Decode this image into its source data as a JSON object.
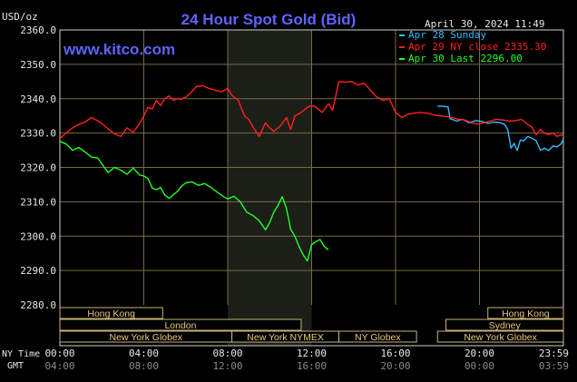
{
  "chart_data": {
    "type": "line",
    "title": "24 Hour Spot Gold (Bid)",
    "date_stamp": "April 30, 2024 11:49",
    "website": "www.kitco.com",
    "y_unit": "USD/oz",
    "ylim": [
      2280,
      2360
    ],
    "y_ticks": [
      "2360.0",
      "2350.0",
      "2340.0",
      "2330.0",
      "2320.0",
      "2310.0",
      "2300.0",
      "2290.0",
      "2280.0"
    ],
    "x_label_ny": "NY Time",
    "x_label_gmt": "GMT",
    "x_ticks_ny": [
      "00:00",
      "04:00",
      "08:00",
      "12:00",
      "16:00",
      "20:00",
      "23:59"
    ],
    "x_ticks_gmt": [
      "04:00",
      "08:00",
      "12:00",
      "16:00",
      "20:00",
      "00:00",
      "03:59"
    ],
    "xlim": [
      0,
      24
    ],
    "highlight_hours": [
      8,
      12
    ],
    "legend_position": "top-right",
    "series": [
      {
        "name": "Apr 28 Sunday",
        "color": "#33bbff",
        "x": [
          18.0,
          18.25,
          18.5,
          18.6,
          18.9,
          19.2,
          19.5,
          19.8,
          20.1,
          20.4,
          20.7,
          21.0,
          21.2,
          21.35,
          21.5,
          21.65,
          21.8,
          21.95,
          22.1,
          22.3,
          22.5,
          22.7,
          22.9,
          23.1,
          23.3,
          23.5,
          23.7,
          23.9,
          24.0
        ],
        "y": [
          2337.8,
          2337.8,
          2337.6,
          2334.2,
          2333.5,
          2334.0,
          2333.0,
          2333.6,
          2333.4,
          2332.8,
          2333.2,
          2333.0,
          2332.5,
          2331.0,
          2325.6,
          2327.0,
          2324.9,
          2328.0,
          2327.7,
          2329.0,
          2328.5,
          2327.8,
          2325.0,
          2325.6,
          2324.9,
          2326.2,
          2326.0,
          2326.9,
          2328.2
        ]
      },
      {
        "name": "Apr 29 NY close 2335.30",
        "color": "#ff2020",
        "x": [
          0.0,
          0.3,
          0.6,
          0.9,
          1.2,
          1.5,
          1.8,
          2.0,
          2.3,
          2.6,
          2.9,
          3.2,
          3.5,
          3.8,
          4.0,
          4.2,
          4.4,
          4.6,
          4.8,
          5.0,
          5.2,
          5.4,
          5.6,
          5.8,
          6.0,
          6.2,
          6.5,
          6.8,
          7.1,
          7.4,
          7.7,
          8.0,
          8.2,
          8.5,
          8.8,
          9.0,
          9.2,
          9.5,
          9.8,
          10.0,
          10.2,
          10.5,
          10.8,
          11.0,
          11.2,
          11.5,
          11.8,
          12.0,
          12.2,
          12.5,
          12.8,
          13.0,
          13.3,
          13.6,
          13.9,
          14.2,
          14.5,
          14.8,
          15.1,
          15.4,
          15.7,
          16.0,
          16.3,
          16.6,
          16.9,
          17.2,
          17.5,
          17.8,
          18.1,
          18.4,
          18.7,
          19.0,
          19.3,
          19.6,
          19.9,
          20.2,
          20.5,
          20.8,
          21.1,
          21.4,
          21.7,
          22.0,
          22.3,
          22.5,
          22.7,
          22.9,
          23.1,
          23.3,
          23.5,
          23.7,
          23.9,
          24.0
        ],
        "y": [
          2328.4,
          2330.0,
          2331.5,
          2332.5,
          2333.2,
          2334.5,
          2333.6,
          2332.8,
          2331.2,
          2329.8,
          2329.0,
          2331.5,
          2330.2,
          2332.8,
          2335.0,
          2337.5,
          2337.0,
          2339.5,
          2338.0,
          2340.0,
          2340.8,
          2339.5,
          2340.0,
          2339.8,
          2340.5,
          2341.5,
          2343.5,
          2343.8,
          2343.0,
          2342.5,
          2342.0,
          2343.0,
          2341.0,
          2339.5,
          2335.0,
          2334.0,
          2331.8,
          2329.0,
          2333.0,
          2331.5,
          2330.5,
          2332.0,
          2334.5,
          2331.0,
          2335.0,
          2336.0,
          2337.5,
          2338.0,
          2337.5,
          2336.0,
          2338.5,
          2336.6,
          2345.0,
          2344.8,
          2345.0,
          2344.0,
          2344.5,
          2342.5,
          2340.5,
          2339.5,
          2340.0,
          2336.0,
          2334.5,
          2335.5,
          2335.8,
          2336.0,
          2335.8,
          2335.3,
          2335.0,
          2334.8,
          2334.5,
          2334.0,
          2333.8,
          2333.0,
          2332.6,
          2333.0,
          2333.5,
          2334.0,
          2333.8,
          2333.5,
          2333.6,
          2334.0,
          2332.5,
          2331.8,
          2329.5,
          2331.0,
          2330.0,
          2329.5,
          2330.0,
          2329.0,
          2329.5,
          2329.2
        ]
      },
      {
        "name": "Apr 30 Last 2296.00",
        "color": "#22ff22",
        "x": [
          0.0,
          0.3,
          0.6,
          0.9,
          1.2,
          1.5,
          1.8,
          2.0,
          2.3,
          2.6,
          2.9,
          3.2,
          3.5,
          3.8,
          4.0,
          4.2,
          4.4,
          4.6,
          4.8,
          5.0,
          5.2,
          5.4,
          5.6,
          5.8,
          6.0,
          6.3,
          6.6,
          6.9,
          7.2,
          7.5,
          7.8,
          8.0,
          8.3,
          8.6,
          8.9,
          9.2,
          9.5,
          9.8,
          10.0,
          10.2,
          10.4,
          10.6,
          10.8,
          11.0,
          11.2,
          11.4,
          11.6,
          11.8,
          12.0,
          12.2,
          12.4,
          12.6,
          12.8
        ],
        "y": [
          2327.6,
          2326.8,
          2325.0,
          2325.8,
          2324.5,
          2323.0,
          2322.8,
          2321.0,
          2318.5,
          2320.0,
          2319.2,
          2318.0,
          2319.8,
          2317.8,
          2317.5,
          2316.8,
          2314.0,
          2313.5,
          2314.2,
          2312.0,
          2311.0,
          2312.0,
          2313.0,
          2314.5,
          2315.5,
          2315.8,
          2314.8,
          2315.3,
          2314.2,
          2312.8,
          2311.5,
          2310.8,
          2311.6,
          2310.0,
          2307.0,
          2306.0,
          2304.5,
          2301.8,
          2304.0,
          2307.0,
          2309.0,
          2311.5,
          2308.0,
          2302.0,
          2300.0,
          2297.0,
          2294.5,
          2292.8,
          2297.5,
          2298.4,
          2299.0,
          2297.0,
          2296.0
        ]
      }
    ],
    "session_bars": [
      {
        "label": "Hong Kong",
        "row": 0,
        "segments": [
          [
            0,
            4.9
          ],
          [
            20.4,
            24
          ]
        ]
      },
      {
        "label": "London",
        "row": 1,
        "segments": [
          [
            0,
            11.5
          ]
        ]
      },
      {
        "label": "Sydney",
        "row": 1,
        "segments": [
          [
            18.4,
            24
          ]
        ]
      },
      {
        "label": "New York Globex",
        "row": 2,
        "segments": [
          [
            0,
            8.2
          ],
          [
            18.0,
            24
          ]
        ]
      },
      {
        "label": "New York NYMEX",
        "row": 2,
        "segments": [
          [
            8.2,
            13.3
          ]
        ]
      },
      {
        "label": "NY Globex",
        "row": 2,
        "segments": [
          [
            13.3,
            17.0
          ]
        ]
      }
    ]
  }
}
